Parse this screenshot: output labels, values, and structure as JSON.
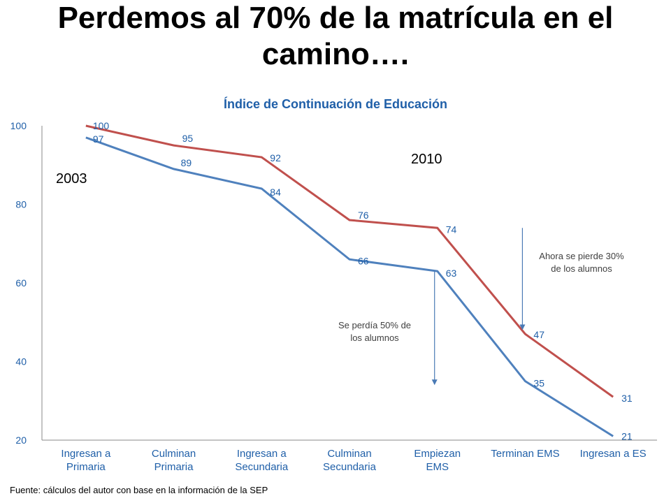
{
  "slide": {
    "title": "Perdemos al 70% de la matrícula en el camino….",
    "source": "Fuente: cálculos del autor con base en la información de la SEP"
  },
  "chart_data": {
    "type": "line",
    "title": "Índice de Continuación  de Educación",
    "categories": [
      [
        "Ingresan a",
        "Primaria"
      ],
      [
        "Culminan",
        "Primaria"
      ],
      [
        "Ingresan a",
        "Secundaria"
      ],
      [
        "Culminan",
        "Secundaria"
      ],
      [
        "Empiezan",
        "EMS"
      ],
      [
        "Terminan EMS"
      ],
      [
        "Ingresan a ES"
      ]
    ],
    "series": [
      {
        "name": "2003",
        "color": "#4f81bd",
        "values": [
          97,
          89,
          84,
          66,
          63,
          35,
          21
        ]
      },
      {
        "name": "2010",
        "color": "#c0504d",
        "values": [
          100,
          95,
          92,
          76,
          74,
          47,
          31
        ]
      }
    ],
    "ylim": [
      20,
      100
    ],
    "yticks": [
      20,
      40,
      60,
      80,
      100
    ],
    "grid": false,
    "annotations": [
      {
        "lines": [
          "Se perdía 50% de",
          "los alumnos"
        ],
        "arrow_category": 4,
        "arrow_from": 63,
        "arrow_to": 34
      },
      {
        "lines": [
          "Ahora se pierde 30%",
          "de los alumnos"
        ],
        "arrow_category": 5,
        "arrow_from": 74,
        "arrow_to": 48
      }
    ]
  }
}
